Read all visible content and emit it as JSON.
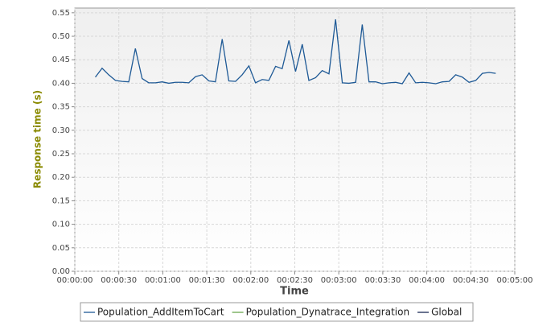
{
  "chart_data": {
    "type": "line",
    "x_label": "Time",
    "y_label": "Response time (s)",
    "x": [
      14,
      18.6,
      23.1,
      27.7,
      32.2,
      36.8,
      41.3,
      45.9,
      50.4,
      55,
      59.5,
      64.1,
      68.6,
      73.2,
      77.7,
      82.3,
      86.8,
      91.4,
      95.9,
      100.5,
      105,
      109.6,
      114.1,
      118.7,
      123.2,
      127.8,
      132.3,
      136.9,
      141.4,
      146,
      150.5,
      155.1,
      159.6,
      164.2,
      168.7,
      173.3,
      177.8,
      182.4,
      186.9,
      191.5,
      196,
      200.6,
      205.1,
      209.7,
      214.2,
      218.8,
      223.3,
      227.9,
      232.4,
      237,
      241.5,
      246.1,
      250.6,
      255.2,
      259.7,
      264.3,
      268.8,
      273.4,
      277.9,
      282.5,
      287
    ],
    "series": [
      {
        "name": "Population_AddItemToCart",
        "color": "#1f5a96",
        "values": [
          0.413,
          0.432,
          0.418,
          0.406,
          0.404,
          0.403,
          0.474,
          0.41,
          0.401,
          0.401,
          0.403,
          0.4,
          0.402,
          0.402,
          0.401,
          0.414,
          0.418,
          0.405,
          0.403,
          0.494,
          0.405,
          0.404,
          0.418,
          0.437,
          0.401,
          0.408,
          0.406,
          0.436,
          0.431,
          0.491,
          0.425,
          0.483,
          0.406,
          0.412,
          0.427,
          0.42,
          0.536,
          0.401,
          0.4,
          0.402,
          0.525,
          0.403,
          0.403,
          0.399,
          0.401,
          0.402,
          0.399,
          0.422,
          0.401,
          0.402,
          0.401,
          0.399,
          0.403,
          0.404,
          0.418,
          0.413,
          0.402,
          0.406,
          0.421,
          0.423,
          0.421
        ]
      },
      {
        "name": "Population_Dynatrace_Integration",
        "color": "#6aa84f"
      },
      {
        "name": "Global",
        "color": "#1a2a55"
      }
    ],
    "xlim": [
      0,
      300
    ],
    "xticks": [
      {
        "value": 0,
        "label": "00:00:00"
      },
      {
        "value": 30,
        "label": "00:00:30"
      },
      {
        "value": 60,
        "label": "00:01:00"
      },
      {
        "value": 90,
        "label": "00:01:30"
      },
      {
        "value": 120,
        "label": "00:02:00"
      },
      {
        "value": 150,
        "label": "00:02:30"
      },
      {
        "value": 180,
        "label": "00:03:00"
      },
      {
        "value": 210,
        "label": "00:03:30"
      },
      {
        "value": 240,
        "label": "00:04:00"
      },
      {
        "value": 270,
        "label": "00:04:30"
      },
      {
        "value": 300,
        "label": "00:05:00"
      }
    ],
    "ylim": [
      0,
      0.56
    ],
    "yticks": [
      {
        "value": 0,
        "label": "0.00"
      },
      {
        "value": 0.05,
        "label": "0.05"
      },
      {
        "value": 0.1,
        "label": "0.10"
      },
      {
        "value": 0.15,
        "label": "0.15"
      },
      {
        "value": 0.2,
        "label": "0.20"
      },
      {
        "value": 0.25,
        "label": "0.25"
      },
      {
        "value": 0.3,
        "label": "0.30"
      },
      {
        "value": 0.35,
        "label": "0.35"
      },
      {
        "value": 0.4,
        "label": "0.40"
      },
      {
        "value": 0.45,
        "label": "0.45"
      },
      {
        "value": 0.5,
        "label": "0.50"
      },
      {
        "value": 0.55,
        "label": "0.55"
      }
    ],
    "grid": true,
    "legend": "bottom"
  }
}
